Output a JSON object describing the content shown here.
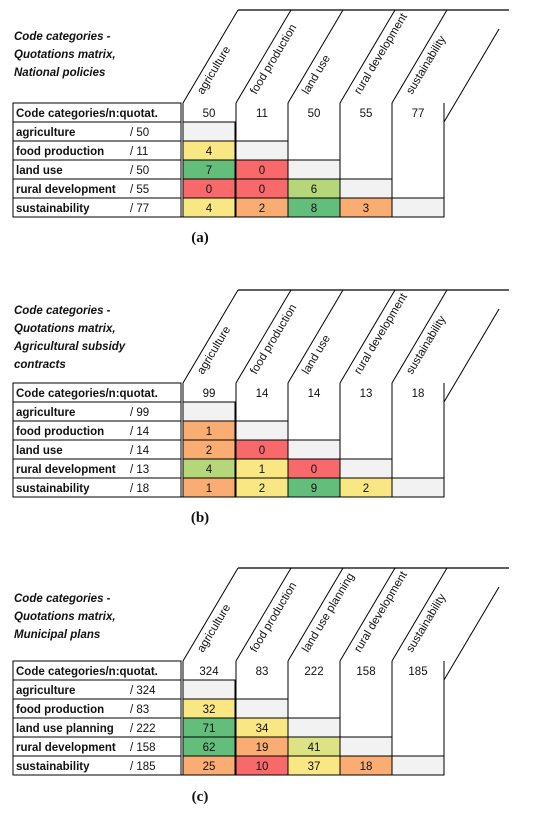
{
  "matrices": [
    {
      "title_lines": [
        "Code categories -",
        "Quotations matrix,",
        "National policies"
      ],
      "caption": "(a)",
      "header_label": "Code categories/n:quotat.",
      "columns": [
        "agriculture",
        "food production",
        "land use",
        "rural development",
        "sustainability"
      ],
      "column_totals": [
        "50",
        "11",
        "50",
        "55",
        "77"
      ],
      "rows": [
        {
          "label": "agriculture",
          "total": "/ 50",
          "values": [
            "",
            "",
            "",
            "",
            ""
          ]
        },
        {
          "label": "food production",
          "total": "/ 11",
          "values": [
            "4",
            "",
            "",
            "",
            ""
          ]
        },
        {
          "label": "land use",
          "total": "/ 50",
          "values": [
            "7",
            "0",
            "",
            "",
            ""
          ]
        },
        {
          "label": "rural development",
          "total": "/ 55",
          "values": [
            "0",
            "0",
            "6",
            "",
            ""
          ]
        },
        {
          "label": "sustainability",
          "total": "/ 77",
          "values": [
            "4",
            "2",
            "8",
            "3",
            ""
          ]
        }
      ],
      "colors": [
        [
          "gray",
          null,
          null,
          null,
          null
        ],
        [
          "yellow",
          "gray",
          null,
          null,
          null
        ],
        [
          "green",
          "red",
          "gray",
          null,
          null
        ],
        [
          "red",
          "red",
          "lightgreen",
          "gray",
          null
        ],
        [
          "yellow",
          "orange",
          "green",
          "orange",
          "gray"
        ]
      ]
    },
    {
      "title_lines": [
        "Code categories -",
        "Quotations matrix,",
        "Agricultural subsidy",
        "contracts"
      ],
      "caption": "(b)",
      "header_label": "Code categories/n:quotat.",
      "columns": [
        "agriculture",
        "food production",
        "land use",
        "rural development",
        "sustainability"
      ],
      "column_totals": [
        "99",
        "14",
        "14",
        "13",
        "18"
      ],
      "rows": [
        {
          "label": "agriculture",
          "total": "/ 99",
          "values": [
            "",
            "",
            "",
            "",
            ""
          ]
        },
        {
          "label": "food production",
          "total": "/ 14",
          "values": [
            "1",
            "",
            "",
            "",
            ""
          ]
        },
        {
          "label": "land use",
          "total": "/ 14",
          "values": [
            "2",
            "0",
            "",
            "",
            ""
          ]
        },
        {
          "label": "rural development",
          "total": "/ 13",
          "values": [
            "4",
            "1",
            "0",
            "",
            ""
          ]
        },
        {
          "label": "sustainability",
          "total": "/ 18",
          "values": [
            "1",
            "2",
            "9",
            "2",
            ""
          ]
        }
      ],
      "colors": [
        [
          "gray",
          null,
          null,
          null,
          null
        ],
        [
          "orange",
          "gray",
          null,
          null,
          null
        ],
        [
          "orange",
          "red",
          "gray",
          null,
          null
        ],
        [
          "lightgreen",
          "yellow",
          "red",
          "gray",
          null
        ],
        [
          "orange",
          "yellow",
          "green",
          "yellow",
          "gray"
        ]
      ]
    },
    {
      "title_lines": [
        "Code categories -",
        "Quotations matrix,",
        "Municipal plans"
      ],
      "caption": "(c)",
      "header_label": "Code categories/n:quotat.",
      "columns": [
        "agriculture",
        "food production",
        "land use planning",
        "rural development",
        "sustainability"
      ],
      "column_totals": [
        "324",
        "83",
        "222",
        "158",
        "185"
      ],
      "rows": [
        {
          "label": "agriculture",
          "total": "/ 324",
          "values": [
            "",
            "",
            "",
            "",
            ""
          ]
        },
        {
          "label": "food production",
          "total": "/ 83",
          "values": [
            "32",
            "",
            "",
            "",
            ""
          ]
        },
        {
          "label": "land use planning",
          "total": "/ 222",
          "values": [
            "71",
            "34",
            "",
            "",
            ""
          ]
        },
        {
          "label": "rural development",
          "total": "/ 158",
          "values": [
            "62",
            "19",
            "41",
            "",
            ""
          ]
        },
        {
          "label": "sustainability",
          "total": "/ 185",
          "values": [
            "25",
            "10",
            "37",
            "18",
            ""
          ]
        }
      ],
      "colors": [
        [
          "gray",
          null,
          null,
          null,
          null
        ],
        [
          "yellow",
          "gray",
          null,
          null,
          null
        ],
        [
          "green",
          "yellow",
          "gray",
          null,
          null
        ],
        [
          "green",
          "orange",
          "yellowgreen",
          "gray",
          null
        ],
        [
          "orange",
          "red",
          "yellow",
          "orange",
          "gray"
        ]
      ]
    }
  ],
  "palette": {
    "gray": "#f2f2f2",
    "yellow": "#f9e784",
    "lightgreen": "#b5d77a",
    "yellowgreen": "#dde384",
    "green": "#63be7b",
    "orange": "#f9ad72",
    "red": "#f8696b"
  },
  "chart_data": [
    {
      "type": "heatmap",
      "title": "Code categories - Quotations matrix, National policies",
      "x": [
        "agriculture",
        "food production",
        "land use",
        "rural development",
        "sustainability"
      ],
      "y": [
        "agriculture",
        "food production",
        "land use",
        "rural development",
        "sustainability"
      ],
      "totals": [
        50,
        11,
        50,
        55,
        77
      ],
      "values": [
        [
          null,
          null,
          null,
          null,
          null
        ],
        [
          4,
          null,
          null,
          null,
          null
        ],
        [
          7,
          0,
          null,
          null,
          null
        ],
        [
          0,
          0,
          6,
          null,
          null
        ],
        [
          4,
          2,
          8,
          3,
          null
        ]
      ]
    },
    {
      "type": "heatmap",
      "title": "Code categories - Quotations matrix, Agricultural subsidy contracts",
      "x": [
        "agriculture",
        "food production",
        "land use",
        "rural development",
        "sustainability"
      ],
      "y": [
        "agriculture",
        "food production",
        "land use",
        "rural development",
        "sustainability"
      ],
      "totals": [
        99,
        14,
        14,
        13,
        18
      ],
      "values": [
        [
          null,
          null,
          null,
          null,
          null
        ],
        [
          1,
          null,
          null,
          null,
          null
        ],
        [
          2,
          0,
          null,
          null,
          null
        ],
        [
          4,
          1,
          0,
          null,
          null
        ],
        [
          1,
          2,
          9,
          2,
          null
        ]
      ]
    },
    {
      "type": "heatmap",
      "title": "Code categories - Quotations matrix, Municipal plans",
      "x": [
        "agriculture",
        "food production",
        "land use planning",
        "rural development",
        "sustainability"
      ],
      "y": [
        "agriculture",
        "food production",
        "land use planning",
        "rural development",
        "sustainability"
      ],
      "totals": [
        324,
        83,
        222,
        158,
        185
      ],
      "values": [
        [
          null,
          null,
          null,
          null,
          null
        ],
        [
          32,
          null,
          null,
          null,
          null
        ],
        [
          71,
          34,
          null,
          null,
          null
        ],
        [
          62,
          19,
          41,
          null,
          null
        ],
        [
          25,
          10,
          37,
          18,
          null
        ]
      ]
    }
  ]
}
